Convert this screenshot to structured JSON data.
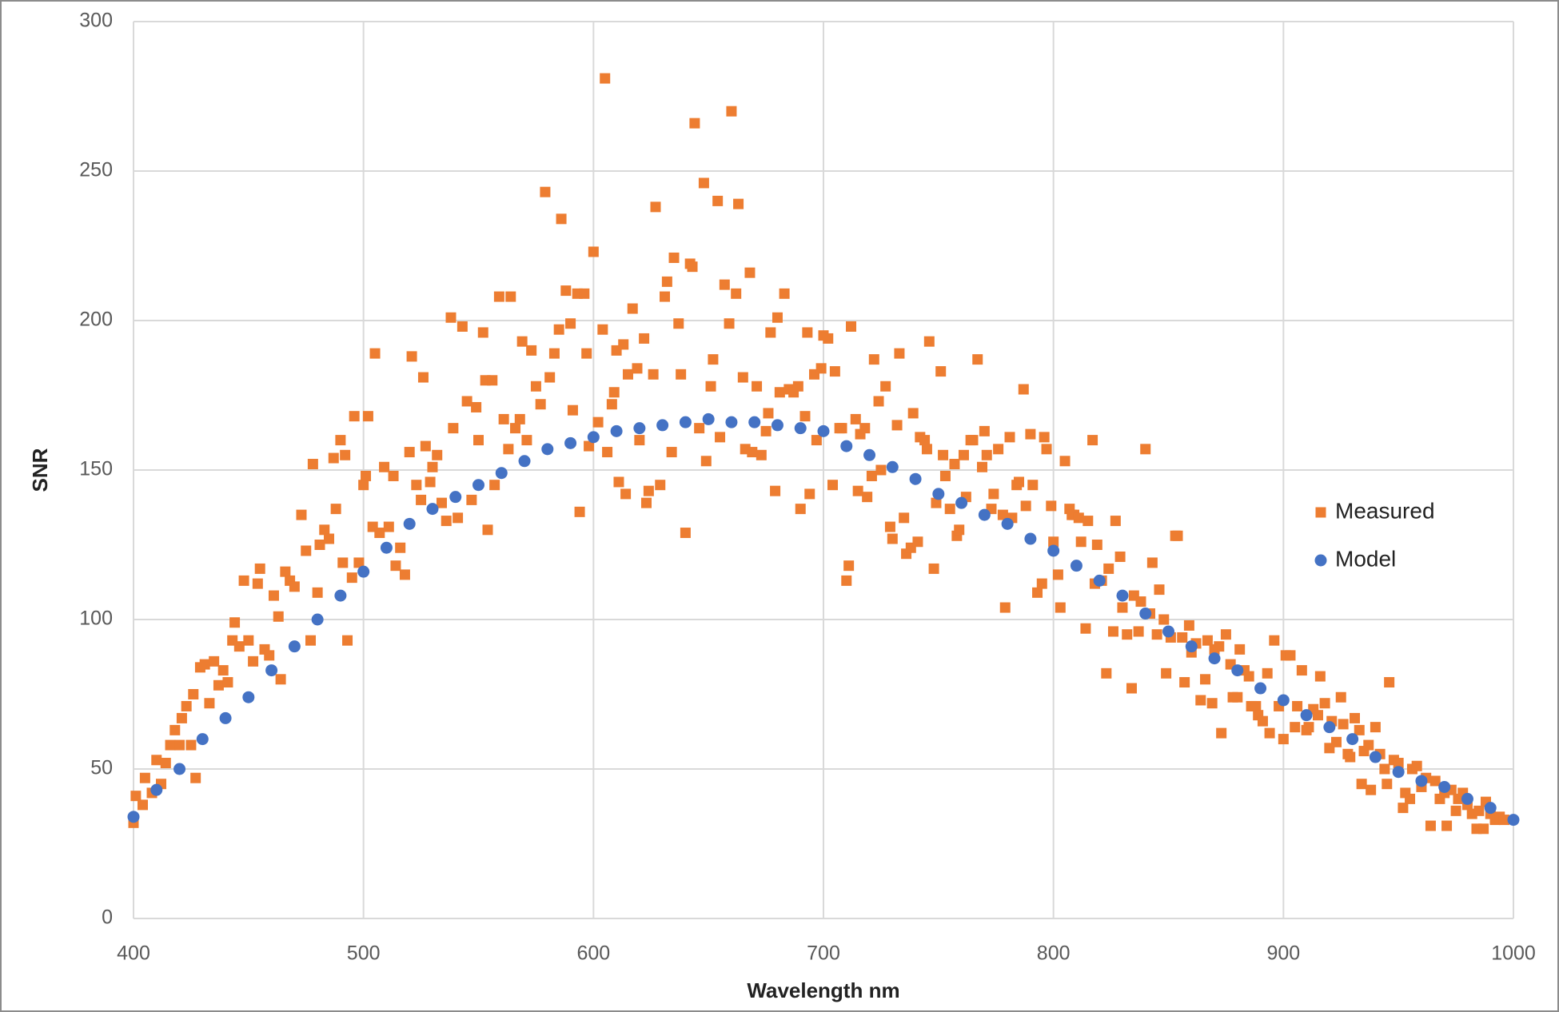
{
  "chart_data": {
    "type": "scatter",
    "x_label": "Wavelength nm",
    "y_label": "SNR",
    "xlim": [
      400,
      1000
    ],
    "xticks": [
      400,
      500,
      600,
      700,
      800,
      900,
      1000
    ],
    "ylim": [
      0,
      300
    ],
    "yticks": [
      0,
      50,
      100,
      150,
      200,
      250,
      300
    ],
    "grid": true,
    "legend": "right",
    "series": [
      {
        "name": "Measured",
        "color": "#ED7D31",
        "marker": "square",
        "x": [
          400,
          401,
          404,
          405,
          408,
          410,
          412,
          414,
          416,
          418,
          420,
          421,
          423,
          425,
          426,
          427,
          429,
          431,
          433,
          435,
          437,
          439,
          441,
          443,
          444,
          446,
          448,
          450,
          452,
          454,
          455,
          457,
          459,
          461,
          463,
          464,
          466,
          468,
          470,
          473,
          475,
          477,
          478,
          480,
          481,
          483,
          485,
          487,
          488,
          490,
          491,
          492,
          493,
          495,
          496,
          498,
          500,
          501,
          502,
          504,
          505,
          507,
          509,
          511,
          513,
          514,
          516,
          518,
          520,
          521,
          523,
          525,
          526,
          527,
          529,
          530,
          532,
          534,
          536,
          538,
          539,
          541,
          543,
          545,
          547,
          549,
          550,
          552,
          553,
          554,
          556,
          557,
          559,
          561,
          563,
          564,
          566,
          568,
          569,
          571,
          573,
          575,
          577,
          579,
          581,
          583,
          585,
          586,
          588,
          590,
          591,
          593,
          594,
          596,
          597,
          598,
          600,
          602,
          604,
          605,
          606,
          608,
          609,
          610,
          611,
          613,
          614,
          615,
          617,
          619,
          620,
          622,
          623,
          624,
          626,
          627,
          629,
          631,
          632,
          634,
          635,
          637,
          638,
          640,
          642,
          643,
          644,
          646,
          648,
          649,
          651,
          652,
          654,
          655,
          657,
          659,
          660,
          662,
          663,
          665,
          666,
          668,
          669,
          671,
          673,
          675,
          676,
          677,
          679,
          680,
          681,
          683,
          685,
          687,
          689,
          690,
          692,
          693,
          694,
          696,
          697,
          699,
          700,
          702,
          704,
          705,
          707,
          708,
          710,
          711,
          712,
          714,
          715,
          716,
          718,
          719,
          721,
          722,
          724,
          725,
          727,
          729,
          730,
          732,
          733,
          735,
          736,
          738,
          739,
          741,
          742,
          744,
          745,
          746,
          748,
          749,
          751,
          752,
          753,
          755,
          757,
          758,
          759,
          761,
          762,
          764,
          765,
          767,
          769,
          770,
          771,
          773,
          774,
          776,
          778,
          779,
          781,
          782,
          784,
          785,
          787,
          788,
          790,
          791,
          793,
          795,
          796,
          797,
          799,
          800,
          802,
          803,
          805,
          807,
          808,
          809,
          811,
          812,
          814,
          815,
          817,
          818,
          819,
          821,
          823,
          824,
          826,
          827,
          829,
          830,
          832,
          834,
          835,
          837,
          838,
          840,
          842,
          843,
          845,
          846,
          848,
          849,
          851,
          853,
          854,
          856,
          857,
          859,
          860,
          862,
          864,
          866,
          867,
          869,
          870,
          872,
          873,
          875,
          877,
          878,
          880,
          881,
          883,
          885,
          886,
          888,
          889,
          891,
          893,
          894,
          896,
          898,
          900,
          901,
          903,
          905,
          906,
          908,
          910,
          911,
          913,
          915,
          916,
          918,
          920,
          921,
          923,
          925,
          926,
          928,
          929,
          931,
          933,
          934,
          935,
          937,
          938,
          940,
          942,
          944,
          945,
          946,
          948,
          950,
          952,
          953,
          955,
          956,
          958,
          960,
          962,
          964,
          966,
          968,
          970,
          971,
          973,
          975,
          976,
          978,
          980,
          982,
          984,
          985,
          987,
          988,
          990,
          992,
          994,
          996
        ],
        "values": [
          32,
          41,
          38,
          47,
          42,
          53,
          45,
          52,
          58,
          63,
          58,
          67,
          71,
          58,
          75,
          47,
          84,
          85,
          72,
          86,
          78,
          83,
          79,
          93,
          99,
          91,
          113,
          93,
          86,
          112,
          117,
          90,
          88,
          108,
          101,
          80,
          116,
          113,
          111,
          135,
          123,
          93,
          152,
          109,
          125,
          130,
          127,
          154,
          137,
          160,
          119,
          155,
          93,
          114,
          168,
          119,
          145,
          148,
          168,
          131,
          189,
          129,
          151,
          131,
          148,
          118,
          124,
          115,
          156,
          188,
          145,
          140,
          181,
          158,
          146,
          151,
          155,
          139,
          133,
          201,
          164,
          134,
          198,
          173,
          140,
          171,
          160,
          196,
          180,
          130,
          180,
          145,
          208,
          167,
          157,
          208,
          164,
          167,
          193,
          160,
          190,
          178,
          172,
          243,
          181,
          189,
          197,
          234,
          210,
          199,
          170,
          209,
          136,
          209,
          189,
          158,
          223,
          166,
          197,
          281,
          156,
          172,
          176,
          190,
          146,
          192,
          142,
          182,
          204,
          184,
          160,
          194,
          139,
          143,
          182,
          238,
          145,
          208,
          213,
          156,
          221,
          199,
          182,
          129,
          219,
          218,
          266,
          164,
          246,
          153,
          178,
          187,
          240,
          161,
          212,
          199,
          270,
          209,
          239,
          181,
          157,
          216,
          156,
          178,
          155,
          163,
          169,
          196,
          143,
          201,
          176,
          209,
          177,
          176,
          178,
          137,
          168,
          196,
          142,
          182,
          160,
          184,
          195,
          194,
          145,
          183,
          164,
          164,
          113,
          118,
          198,
          167,
          143,
          162,
          164,
          141,
          148,
          187,
          173,
          150,
          178,
          131,
          127,
          165,
          189,
          134,
          122,
          124,
          169,
          126,
          161,
          160,
          157,
          193,
          117,
          139,
          183,
          155,
          148,
          137,
          152,
          128,
          130,
          155,
          141,
          160,
          160,
          187,
          151,
          163,
          155,
          137,
          142,
          157,
          135,
          104,
          161,
          134,
          145,
          146,
          177,
          138,
          162,
          145,
          109,
          112,
          161,
          157,
          138,
          126,
          115,
          104,
          153,
          137,
          135,
          135,
          134,
          126,
          97,
          133,
          160,
          112,
          125,
          113,
          82,
          117,
          96,
          133,
          121,
          104,
          95,
          77,
          108,
          96,
          106,
          157,
          102,
          119,
          95,
          110,
          100,
          82,
          94,
          128,
          128,
          94,
          79,
          98,
          89,
          92,
          73,
          80,
          93,
          72,
          90,
          91,
          62,
          95,
          85,
          74,
          74,
          90,
          83,
          81,
          71,
          71,
          68,
          66,
          82,
          62,
          93,
          71,
          60,
          88,
          88,
          64,
          71,
          83,
          63,
          64,
          70,
          68,
          81,
          72,
          57,
          66,
          59,
          74,
          65,
          55,
          54,
          67,
          63,
          45,
          56,
          58,
          43,
          64,
          55,
          50,
          45,
          79,
          53,
          52,
          37,
          42,
          40,
          50,
          51,
          44,
          47,
          31,
          46,
          40,
          42,
          31,
          43,
          36,
          40,
          42,
          38,
          35,
          30,
          36,
          30,
          39,
          35,
          33,
          34,
          33
        ]
      },
      {
        "name": "Model",
        "color": "#4472C4",
        "marker": "circle",
        "x": [
          400,
          410,
          420,
          430,
          440,
          450,
          460,
          470,
          480,
          490,
          500,
          510,
          520,
          530,
          540,
          550,
          560,
          570,
          580,
          590,
          600,
          610,
          620,
          630,
          640,
          650,
          660,
          670,
          680,
          690,
          700,
          710,
          720,
          730,
          740,
          750,
          760,
          770,
          780,
          790,
          800,
          810,
          820,
          830,
          840,
          850,
          860,
          870,
          880,
          890,
          900,
          910,
          920,
          930,
          940,
          950,
          960,
          970,
          980,
          990,
          1000
        ],
        "values": [
          34,
          43,
          50,
          60,
          67,
          74,
          83,
          91,
          100,
          108,
          116,
          124,
          132,
          137,
          141,
          145,
          149,
          153,
          157,
          159,
          161,
          163,
          164,
          165,
          166,
          167,
          166,
          166,
          165,
          164,
          163,
          158,
          155,
          151,
          147,
          142,
          139,
          135,
          132,
          127,
          123,
          118,
          113,
          108,
          102,
          96,
          91,
          87,
          83,
          77,
          73,
          68,
          64,
          60,
          54,
          49,
          46,
          44,
          40,
          37,
          33
        ]
      }
    ]
  }
}
